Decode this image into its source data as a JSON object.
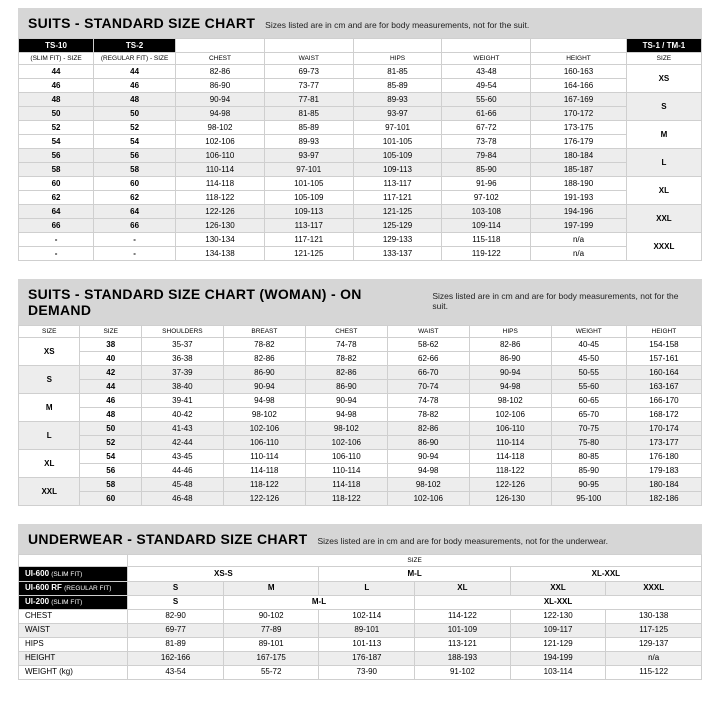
{
  "suits": {
    "title": "SUITS - STANDARD SIZE CHART",
    "subtitle": "Sizes listed are in cm and are for body measurements, not for the suit.",
    "head1": [
      "TS-10",
      "TS-2",
      "",
      "",
      "",
      "",
      "",
      "TS-1 / TM-1"
    ],
    "head2": [
      "(SLIM FIT) - SIZE",
      "(REGULAR FIT) - SIZE",
      "CHEST",
      "WAIST",
      "HIPS",
      "WEIGHT",
      "HEIGHT",
      "SIZE"
    ],
    "rows": [
      [
        "44",
        "44",
        "82-86",
        "69-73",
        "81-85",
        "43-48",
        "160-163"
      ],
      [
        "46",
        "46",
        "86-90",
        "73-77",
        "85-89",
        "49-54",
        "164-166"
      ],
      [
        "48",
        "48",
        "90-94",
        "77-81",
        "89-93",
        "55-60",
        "167-169"
      ],
      [
        "50",
        "50",
        "94-98",
        "81-85",
        "93-97",
        "61-66",
        "170-172"
      ],
      [
        "52",
        "52",
        "98-102",
        "85-89",
        "97-101",
        "67-72",
        "173-175"
      ],
      [
        "54",
        "54",
        "102-106",
        "89-93",
        "101-105",
        "73-78",
        "176-179"
      ],
      [
        "56",
        "56",
        "106-110",
        "93-97",
        "105-109",
        "79-84",
        "180-184"
      ],
      [
        "58",
        "58",
        "110-114",
        "97-101",
        "109-113",
        "85-90",
        "185-187"
      ],
      [
        "60",
        "60",
        "114-118",
        "101-105",
        "113-117",
        "91-96",
        "188-190"
      ],
      [
        "62",
        "62",
        "118-122",
        "105-109",
        "117-121",
        "97-102",
        "191-193"
      ],
      [
        "64",
        "64",
        "122-126",
        "109-113",
        "121-125",
        "103-108",
        "194-196"
      ],
      [
        "66",
        "66",
        "126-130",
        "113-117",
        "125-129",
        "109-114",
        "197-199"
      ],
      [
        "-",
        "-",
        "130-134",
        "117-121",
        "129-133",
        "115-118",
        "n/a"
      ],
      [
        "-",
        "-",
        "134-138",
        "121-125",
        "133-137",
        "119-122",
        "n/a"
      ]
    ],
    "sizes": [
      "XS",
      "S",
      "M",
      "L",
      "XL",
      "XXL",
      "XXXL"
    ]
  },
  "woman": {
    "title": "SUITS - STANDARD SIZE CHART (WOMAN) - ON DEMAND",
    "subtitle": "Sizes listed are in cm and are for body measurements, not for the suit.",
    "head": [
      "SIZE",
      "SIZE",
      "SHOULDERS",
      "BREAST",
      "CHEST",
      "WAIST",
      "HIPS",
      "WEIGHT",
      "HEIGHT"
    ],
    "groups": [
      "XS",
      "S",
      "M",
      "L",
      "XL",
      "XXL"
    ],
    "rows": [
      [
        "38",
        "35-37",
        "78-82",
        "74-78",
        "58-62",
        "82-86",
        "40-45",
        "154-158"
      ],
      [
        "40",
        "36-38",
        "82-86",
        "78-82",
        "62-66",
        "86-90",
        "45-50",
        "157-161"
      ],
      [
        "42",
        "37-39",
        "86-90",
        "82-86",
        "66-70",
        "90-94",
        "50-55",
        "160-164"
      ],
      [
        "44",
        "38-40",
        "90-94",
        "86-90",
        "70-74",
        "94-98",
        "55-60",
        "163-167"
      ],
      [
        "46",
        "39-41",
        "94-98",
        "90-94",
        "74-78",
        "98-102",
        "60-65",
        "166-170"
      ],
      [
        "48",
        "40-42",
        "98-102",
        "94-98",
        "78-82",
        "102-106",
        "65-70",
        "168-172"
      ],
      [
        "50",
        "41-43",
        "102-106",
        "98-102",
        "82-86",
        "106-110",
        "70-75",
        "170-174"
      ],
      [
        "52",
        "42-44",
        "106-110",
        "102-106",
        "86-90",
        "110-114",
        "75-80",
        "173-177"
      ],
      [
        "54",
        "43-45",
        "110-114",
        "106-110",
        "90-94",
        "114-118",
        "80-85",
        "176-180"
      ],
      [
        "56",
        "44-46",
        "114-118",
        "110-114",
        "94-98",
        "118-122",
        "85-90",
        "179-183"
      ],
      [
        "58",
        "45-48",
        "118-122",
        "114-118",
        "98-102",
        "122-126",
        "90-95",
        "180-184"
      ],
      [
        "60",
        "46-48",
        "122-126",
        "118-122",
        "102-106",
        "126-130",
        "95-100",
        "182-186"
      ]
    ]
  },
  "underwear": {
    "title": "UNDERWEAR - STANDARD SIZE CHART",
    "subtitle": "Sizes listed are in cm and are for body measurements, not for the underwear.",
    "sizeLabel": "SIZE",
    "p1": {
      "label": "UI-600",
      "fit": "(SLIM FIT)",
      "cells": [
        "XS-S",
        "M-L",
        "XL-XXL"
      ]
    },
    "p2": {
      "label": "UI-600 RF",
      "fit": "(REGULAR FIT)",
      "cells": [
        "S",
        "M",
        "L",
        "XL",
        "XXL",
        "XXXL"
      ]
    },
    "p3": {
      "label": "UI-200",
      "fit": "(SLIM FIT)",
      "cells": [
        "S",
        "M-L",
        "XL-XXL"
      ]
    },
    "meas": [
      {
        "label": "CHEST",
        "cells": [
          "82-90",
          "90-102",
          "102-114",
          "114-122",
          "122-130",
          "130-138"
        ]
      },
      {
        "label": "WAIST",
        "cells": [
          "69-77",
          "77-89",
          "89-101",
          "101-109",
          "109-117",
          "117-125"
        ]
      },
      {
        "label": "HIPS",
        "cells": [
          "81-89",
          "89-101",
          "101-113",
          "113-121",
          "121-129",
          "129-137"
        ]
      },
      {
        "label": "HEIGHT",
        "cells": [
          "162-166",
          "167-175",
          "176-187",
          "188-193",
          "194-199",
          "n/a"
        ]
      },
      {
        "label": "WEIGHT (kg)",
        "cells": [
          "43-54",
          "55-72",
          "73-90",
          "91-102",
          "103-114",
          "115-122"
        ]
      }
    ]
  }
}
